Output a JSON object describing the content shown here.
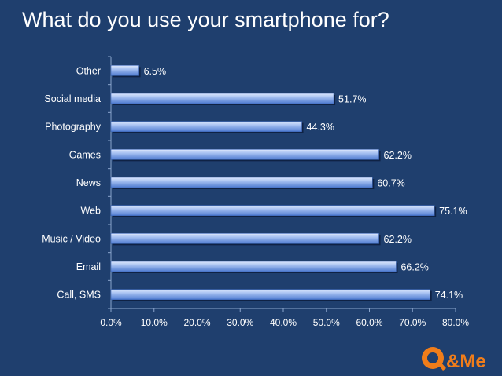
{
  "title": "What do you use your smartphone for?",
  "logo_text": "Q&Me",
  "colors": {
    "background": "#1f3f6e",
    "bar_fill_light": "#c4d6f8",
    "bar_fill_dark": "#5b86d6",
    "bar_shadow": "#0f2244",
    "text": "#ffffff",
    "logo_orange": "#f07d1a"
  },
  "chart_data": {
    "type": "bar",
    "orientation": "horizontal",
    "categories": [
      "Call, SMS",
      "Email",
      "Music / Video",
      "Web",
      "News",
      "Games",
      "Photography",
      "Social media",
      "Other"
    ],
    "values": [
      74.1,
      66.2,
      62.2,
      75.1,
      60.7,
      62.2,
      44.3,
      51.7,
      6.5
    ],
    "data_labels": [
      "74.1%",
      "66.2%",
      "62.2%",
      "75.1%",
      "60.7%",
      "62.2%",
      "44.3%",
      "51.7%",
      "6.5%"
    ],
    "x_ticks": [
      "0.0%",
      "10.0%",
      "20.0%",
      "30.0%",
      "40.0%",
      "50.0%",
      "60.0%",
      "70.0%",
      "80.0%"
    ],
    "xlim": [
      0,
      80
    ],
    "grid": false,
    "legend": false
  }
}
